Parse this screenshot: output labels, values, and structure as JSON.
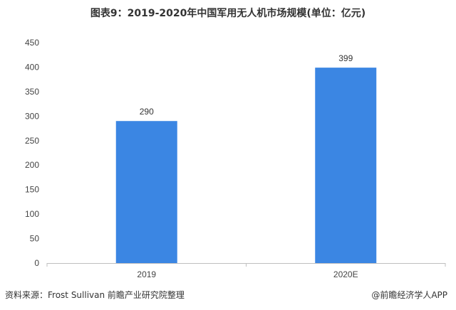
{
  "chart_data": {
    "type": "bar",
    "title": "图表9：2019-2020年中国军用无人机市场规模(单位：亿元)",
    "categories": [
      "2019",
      "2020E"
    ],
    "values": [
      290,
      399
    ],
    "data_labels": [
      "290",
      "399"
    ],
    "ylim": [
      0,
      450
    ],
    "yticks": [
      0,
      50,
      100,
      150,
      200,
      250,
      300,
      350,
      400,
      450
    ],
    "xlabel": "",
    "ylabel": "",
    "grid": false,
    "legend": "none",
    "bar_color": "#3b86e3"
  },
  "footer": {
    "source": "资料来源：Frost Sullivan 前瞻产业研究院整理",
    "brand": "@前瞻经济学人APP"
  }
}
